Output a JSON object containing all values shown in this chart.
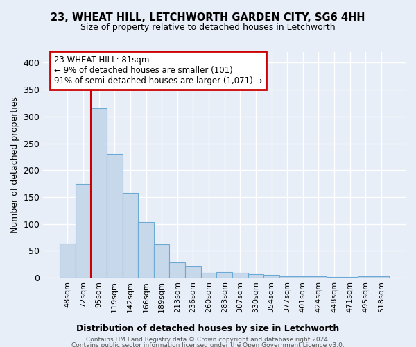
{
  "title": "23, WHEAT HILL, LETCHWORTH GARDEN CITY, SG6 4HH",
  "subtitle": "Size of property relative to detached houses in Letchworth",
  "xlabel": "Distribution of detached houses by size in Letchworth",
  "ylabel": "Number of detached properties",
  "bar_color": "#c8d8eb",
  "bar_edge_color": "#6aaad4",
  "annotation_text_line1": "23 WHEAT HILL: 81sqm",
  "annotation_text_line2": "← 9% of detached houses are smaller (101)",
  "annotation_text_line3": "91% of semi-detached houses are larger (1,071) →",
  "footer_line1": "Contains HM Land Registry data © Crown copyright and database right 2024.",
  "footer_line2": "Contains public sector information licensed under the Open Government Licence v3.0.",
  "categories": [
    "48sqm",
    "72sqm",
    "95sqm",
    "119sqm",
    "142sqm",
    "166sqm",
    "189sqm",
    "213sqm",
    "236sqm",
    "260sqm",
    "283sqm",
    "307sqm",
    "330sqm",
    "354sqm",
    "377sqm",
    "401sqm",
    "424sqm",
    "448sqm",
    "471sqm",
    "495sqm",
    "518sqm"
  ],
  "values": [
    63,
    175,
    315,
    230,
    158,
    103,
    62,
    28,
    21,
    9,
    10,
    9,
    7,
    5,
    3,
    3,
    2,
    1,
    1,
    3,
    3
  ],
  "ylim": [
    0,
    420
  ],
  "yticks": [
    0,
    50,
    100,
    150,
    200,
    250,
    300,
    350,
    400
  ],
  "bg_color": "#e8eef7",
  "plot_bg_color": "#e8eef7",
  "grid_color": "#ffffff",
  "annotation_box_color": "#ffffff",
  "annotation_box_edge_color": "#cc0000",
  "vline_color": "#cc0000",
  "vline_x": 1.5
}
